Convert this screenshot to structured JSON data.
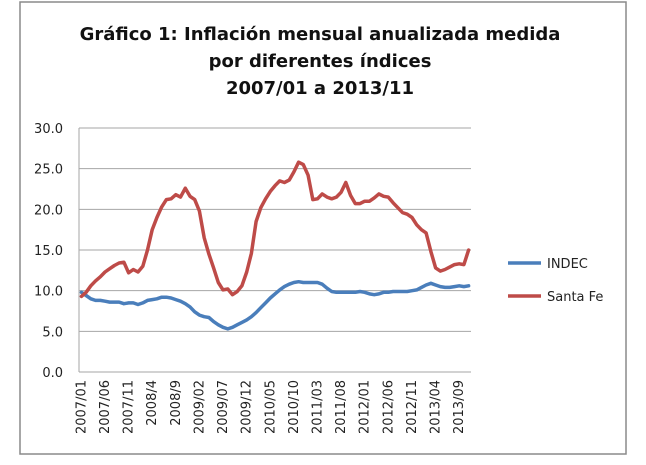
{
  "chart_data": {
    "type": "line",
    "title_lines": [
      "Gráfico 1: Inflación mensual anualizada medida",
      "por diferentes índices",
      "2007/01 a 2013/11"
    ],
    "xlabel": "",
    "ylabel": "",
    "ylim": [
      0,
      30
    ],
    "yticks": [
      "0.0",
      "5.0",
      "10.0",
      "15.0",
      "20.0",
      "25.0",
      "30.0"
    ],
    "ytick_values": [
      0,
      5,
      10,
      15,
      20,
      25,
      30
    ],
    "grid": true,
    "legend_position": "right",
    "x_start": "2007/01",
    "x_count": 83,
    "xtick_labels": [
      "2007/01",
      "2007/06",
      "2007/11",
      "2008/4",
      "2008/9",
      "2009/02",
      "2009/07",
      "2009/12",
      "2010/05",
      "2010/10",
      "2011/03",
      "2011/08",
      "2012/01",
      "2012/06",
      "2012/11",
      "2013/04",
      "2013/09"
    ],
    "xtick_step": 5,
    "series": [
      {
        "name": "INDEC",
        "color": "#4a7ebb",
        "values": [
          9.8,
          9.4,
          9.0,
          8.8,
          8.8,
          8.7,
          8.6,
          8.6,
          8.6,
          8.4,
          8.5,
          8.5,
          8.3,
          8.5,
          8.8,
          8.9,
          9.0,
          9.2,
          9.2,
          9.1,
          8.9,
          8.7,
          8.4,
          8.0,
          7.4,
          7.0,
          6.8,
          6.7,
          6.2,
          5.8,
          5.5,
          5.3,
          5.5,
          5.8,
          6.1,
          6.4,
          6.8,
          7.3,
          7.9,
          8.5,
          9.1,
          9.6,
          10.1,
          10.5,
          10.8,
          11.0,
          11.1,
          11.0,
          11.0,
          11.0,
          11.0,
          10.8,
          10.3,
          9.9,
          9.8,
          9.8,
          9.8,
          9.8,
          9.8,
          9.9,
          9.8,
          9.6,
          9.5,
          9.6,
          9.8,
          9.8,
          9.9,
          9.9,
          9.9,
          9.9,
          10.0,
          10.1,
          10.4,
          10.7,
          10.9,
          10.7,
          10.5,
          10.4,
          10.4,
          10.5,
          10.6,
          10.5,
          10.6
        ]
      },
      {
        "name": "Santa Fe",
        "color": "#be4b48",
        "values": [
          9.3,
          9.8,
          10.6,
          11.2,
          11.7,
          12.3,
          12.7,
          13.1,
          13.4,
          13.5,
          12.2,
          12.6,
          12.3,
          13.0,
          15.0,
          17.5,
          19.0,
          20.3,
          21.2,
          21.3,
          21.8,
          21.5,
          22.6,
          21.6,
          21.2,
          19.8,
          16.5,
          14.5,
          12.8,
          11.0,
          10.1,
          10.2,
          9.5,
          9.9,
          10.6,
          12.3,
          14.6,
          18.5,
          20.2,
          21.3,
          22.2,
          22.9,
          23.5,
          23.3,
          23.6,
          24.6,
          25.8,
          25.5,
          24.2,
          21.2,
          21.3,
          21.9,
          21.5,
          21.3,
          21.5,
          22.1,
          23.3,
          21.7,
          20.7,
          20.7,
          21.0,
          21.0,
          21.4,
          21.9,
          21.6,
          21.5,
          20.8,
          20.2,
          19.6,
          19.4,
          19.0,
          18.1,
          17.5,
          17.1,
          14.8,
          12.8,
          12.4,
          12.6,
          12.9,
          13.2,
          13.3,
          13.2,
          15.0
        ]
      }
    ]
  }
}
